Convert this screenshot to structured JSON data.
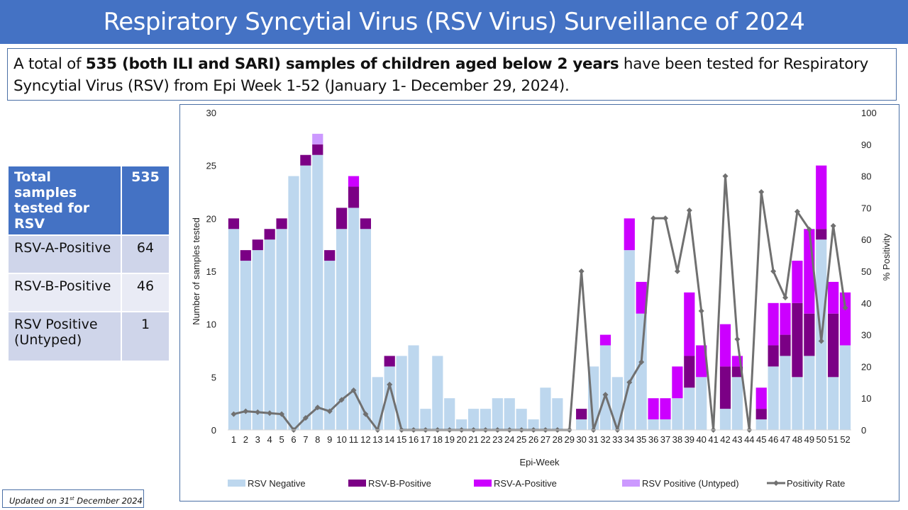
{
  "header": {
    "title": "Respiratory Syncytial Virus (RSV Virus) Surveillance of 2024"
  },
  "summary": {
    "prefix": "A total of ",
    "bold": "535 (both ILI and SARI) samples of children aged below 2 years",
    "suffix_line1": " have been tested for Respiratory",
    "line2": "Syncytial Virus (RSV) from Epi Week 1-52 (January 1- December 29, 2024)."
  },
  "stats_table": {
    "header": {
      "label": "Total samples tested for RSV",
      "value": "535"
    },
    "rows": [
      {
        "label": "RSV-A-Positive",
        "value": "64"
      },
      {
        "label": "RSV-B-Positive",
        "value": "46"
      },
      {
        "label": "RSV Positive (Untyped)",
        "value": "1"
      }
    ]
  },
  "updated": {
    "prefix": "Updated on ",
    "day": "31",
    "ordinal": "st",
    "rest": " December 2024"
  },
  "colors": {
    "header_bg": "#4472c4",
    "negative": "#bdd7ee",
    "rsv_b": "#7b0085",
    "rsv_a": "#cc00ff",
    "untyped": "#cc99ff",
    "positivity_line": "#707070"
  },
  "chart_data": {
    "type": "bar",
    "stacked": true,
    "xlabel": "Epi-Week",
    "ylabel": "Number of samples tested",
    "y2label": "% Positivity",
    "ylim": [
      0,
      30
    ],
    "y_ticks": [
      0,
      5,
      10,
      15,
      20,
      25,
      30
    ],
    "y2lim": [
      0,
      100
    ],
    "y2_ticks": [
      0,
      10,
      20,
      30,
      40,
      50,
      60,
      70,
      80,
      90,
      100
    ],
    "grid": false,
    "legend_position": "bottom",
    "categories": [
      "1",
      "2",
      "3",
      "4",
      "5",
      "6",
      "7",
      "8",
      "9",
      "10",
      "11",
      "12",
      "13",
      "14",
      "15",
      "16",
      "17",
      "18",
      "19",
      "20",
      "21",
      "22",
      "23",
      "24",
      "25",
      "26",
      "27",
      "28",
      "29",
      "30",
      "31",
      "32",
      "33",
      "34",
      "35",
      "36",
      "37",
      "38",
      "39",
      "40",
      "41",
      "42",
      "43",
      "44",
      "45",
      "46",
      "47",
      "48",
      "49",
      "50",
      "51",
      "52"
    ],
    "series": [
      {
        "name": "RSV Negative",
        "color": "#bdd7ee",
        "values": [
          19,
          16,
          17,
          18,
          19,
          24,
          25,
          26,
          16,
          19,
          21,
          19,
          5,
          6,
          7,
          8,
          2,
          7,
          3,
          1,
          2,
          2,
          3,
          3,
          2,
          1,
          4,
          3,
          0,
          1,
          6,
          8,
          5,
          17,
          11,
          1,
          1,
          3,
          4,
          5,
          0,
          2,
          5,
          0,
          1,
          6,
          7,
          5,
          7,
          18,
          5,
          8
        ]
      },
      {
        "name": "RSV-B-Positive",
        "color": "#7b0085",
        "values": [
          1,
          1,
          1,
          1,
          1,
          0,
          1,
          1,
          1,
          2,
          2,
          1,
          0,
          1,
          0,
          0,
          0,
          0,
          0,
          0,
          0,
          0,
          0,
          0,
          0,
          0,
          0,
          0,
          0,
          1,
          0,
          0,
          0,
          0,
          0,
          0,
          0,
          0,
          3,
          0,
          0,
          4,
          1,
          0,
          1,
          2,
          2,
          7,
          4,
          1,
          6,
          0
        ]
      },
      {
        "name": "RSV-A-Positive",
        "color": "#cc00ff",
        "values": [
          0,
          0,
          0,
          0,
          0,
          0,
          0,
          0,
          0,
          0,
          1,
          0,
          0,
          0,
          0,
          0,
          0,
          0,
          0,
          0,
          0,
          0,
          0,
          0,
          0,
          0,
          0,
          0,
          0,
          0,
          0,
          1,
          0,
          3,
          3,
          2,
          2,
          3,
          6,
          3,
          0,
          4,
          1,
          0,
          2,
          4,
          3,
          4,
          8,
          6,
          3,
          5
        ]
      },
      {
        "name": "RSV Positive (Untyped)",
        "color": "#cc99ff",
        "values": [
          0,
          0,
          0,
          0,
          0,
          0,
          0,
          1,
          0,
          0,
          0,
          0,
          0,
          0,
          0,
          0,
          0,
          0,
          0,
          0,
          0,
          0,
          0,
          0,
          0,
          0,
          0,
          0,
          0,
          0,
          0,
          0,
          0,
          0,
          0,
          0,
          0,
          0,
          0,
          0,
          0,
          0,
          0,
          0,
          0,
          0,
          0,
          0,
          0,
          0,
          0,
          0
        ]
      },
      {
        "name": "Positivity Rate",
        "type": "line",
        "axis": "right",
        "color": "#707070",
        "values": [
          5.0,
          5.9,
          5.6,
          5.3,
          5.0,
          0,
          3.8,
          7.1,
          5.9,
          9.5,
          12.5,
          5.0,
          0,
          14.3,
          0,
          0,
          0,
          0,
          0,
          0,
          0,
          0,
          0,
          0,
          0,
          0,
          0,
          0,
          0,
          50.0,
          0,
          11.1,
          0,
          15.0,
          21.4,
          66.7,
          66.7,
          50.0,
          69.2,
          37.5,
          0,
          80.0,
          28.6,
          0,
          75.0,
          50.0,
          41.7,
          68.8,
          63.2,
          28.0,
          64.3,
          38.5
        ]
      }
    ]
  }
}
